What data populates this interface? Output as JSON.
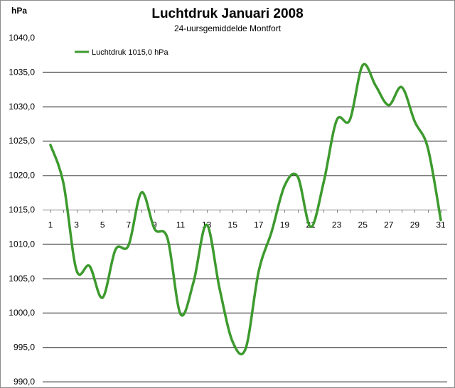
{
  "chart_data": {
    "type": "line",
    "title": "Luchtdruk Januari 2008",
    "subtitle": "24-uursgemiddelde Montfort",
    "ylabel": "hPa",
    "xlabel": "",
    "ylim": [
      990,
      1040
    ],
    "ytick_step": 5,
    "y_tick_labels": [
      "1040,0",
      "1035,0",
      "1030,0",
      "1025,0",
      "1020,0",
      "1015,0",
      "1010,0",
      "1005,0",
      "1000,0",
      "995,0",
      "990,0"
    ],
    "x": [
      1,
      2,
      3,
      4,
      5,
      6,
      7,
      8,
      9,
      10,
      11,
      12,
      13,
      14,
      15,
      16,
      17,
      18,
      19,
      20,
      21,
      22,
      23,
      24,
      25,
      26,
      27,
      28,
      29,
      30,
      31
    ],
    "x_tick_labels": [
      "1",
      "3",
      "5",
      "7",
      "9",
      "11",
      "13",
      "15",
      "17",
      "19",
      "21",
      "23",
      "25",
      "27",
      "29",
      "31"
    ],
    "x_axis_at": 1015,
    "grid": true,
    "legend_position": "top-left",
    "series": [
      {
        "name": "Luchtdruk 1015,0 hPa",
        "color": "#3d9a2e",
        "values": [
          1024.4,
          1018.8,
          1006.2,
          1006.8,
          1002.2,
          1009.2,
          1009.8,
          1017.5,
          1012.2,
          1010.8,
          999.8,
          1004.5,
          1012.8,
          1003.5,
          995.8,
          994.8,
          1006.0,
          1011.8,
          1018.5,
          1019.8,
          1012.5,
          1019.0,
          1028.0,
          1028.0,
          1036.0,
          1033.0,
          1030.2,
          1032.8,
          1027.8,
          1024.0,
          1013.5
        ]
      }
    ]
  }
}
